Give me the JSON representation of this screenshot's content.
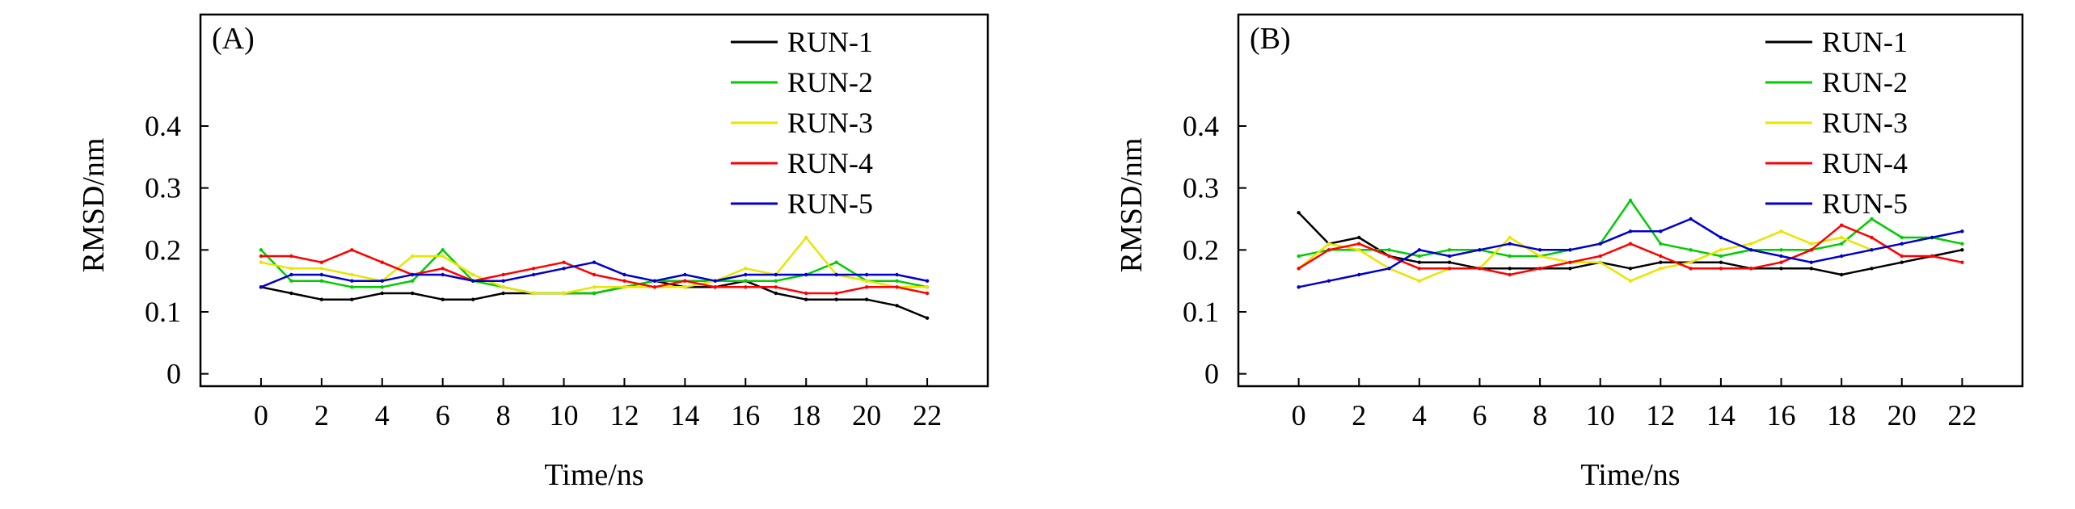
{
  "chart_data": [
    {
      "type": "line",
      "panel_label": "(A)",
      "xlabel": "Time/ns",
      "ylabel": "RMSD/nm",
      "xlim": [
        -2,
        24
      ],
      "ylim": [
        -0.02,
        0.58
      ],
      "xticks": [
        0,
        2,
        4,
        6,
        8,
        10,
        12,
        14,
        16,
        18,
        20,
        22
      ],
      "xtick_labels": [
        "0",
        "2",
        "4",
        "6",
        "8",
        "10",
        "12",
        "14",
        "16",
        "18",
        "20",
        "22"
      ],
      "yticks": [
        0,
        0.1,
        0.2,
        0.3,
        0.4
      ],
      "ytick_labels": [
        "0",
        "0.1",
        "0.2",
        "0.3",
        "0.4"
      ],
      "legend_position": "top-right",
      "grid": false,
      "x": [
        0,
        1,
        2,
        3,
        4,
        5,
        6,
        7,
        8,
        9,
        10,
        11,
        12,
        13,
        14,
        15,
        16,
        17,
        18,
        19,
        20,
        21,
        22
      ],
      "series": [
        {
          "name": "RUN-1",
          "color": "#000000",
          "values": [
            0.14,
            0.13,
            0.12,
            0.12,
            0.13,
            0.13,
            0.12,
            0.12,
            0.13,
            0.13,
            0.13,
            0.13,
            0.14,
            0.15,
            0.14,
            0.14,
            0.15,
            0.13,
            0.12,
            0.12,
            0.12,
            0.11,
            0.09
          ]
        },
        {
          "name": "RUN-2",
          "color": "#00cc00",
          "values": [
            0.2,
            0.15,
            0.15,
            0.14,
            0.14,
            0.15,
            0.2,
            0.15,
            0.14,
            0.13,
            0.13,
            0.13,
            0.14,
            0.15,
            0.15,
            0.15,
            0.15,
            0.15,
            0.16,
            0.18,
            0.15,
            0.15,
            0.14
          ]
        },
        {
          "name": "RUN-3",
          "color": "#e6e600",
          "values": [
            0.18,
            0.17,
            0.17,
            0.16,
            0.15,
            0.19,
            0.19,
            0.16,
            0.14,
            0.13,
            0.13,
            0.14,
            0.14,
            0.14,
            0.14,
            0.15,
            0.17,
            0.16,
            0.22,
            0.16,
            0.15,
            0.14,
            0.14
          ]
        },
        {
          "name": "RUN-4",
          "color": "#ff0000",
          "values": [
            0.19,
            0.19,
            0.18,
            0.2,
            0.18,
            0.16,
            0.17,
            0.15,
            0.16,
            0.17,
            0.18,
            0.16,
            0.15,
            0.14,
            0.15,
            0.14,
            0.14,
            0.14,
            0.13,
            0.13,
            0.14,
            0.14,
            0.13
          ]
        },
        {
          "name": "RUN-5",
          "color": "#0000cc",
          "values": [
            0.14,
            0.16,
            0.16,
            0.15,
            0.15,
            0.16,
            0.16,
            0.15,
            0.15,
            0.16,
            0.17,
            0.18,
            0.16,
            0.15,
            0.16,
            0.15,
            0.16,
            0.16,
            0.16,
            0.16,
            0.16,
            0.16,
            0.15
          ]
        }
      ]
    },
    {
      "type": "line",
      "panel_label": "(B)",
      "xlabel": "Time/ns",
      "ylabel": "RMSD/nm",
      "xlim": [
        -2,
        24
      ],
      "ylim": [
        -0.02,
        0.58
      ],
      "xticks": [
        0,
        2,
        4,
        6,
        8,
        10,
        12,
        14,
        16,
        18,
        20,
        22
      ],
      "xtick_labels": [
        "0",
        "2",
        "4",
        "6",
        "8",
        "10",
        "12",
        "14",
        "16",
        "18",
        "20",
        "22"
      ],
      "yticks": [
        0,
        0.1,
        0.2,
        0.3,
        0.4
      ],
      "ytick_labels": [
        "0",
        "0.1",
        "0.2",
        "0.3",
        "0.4"
      ],
      "legend_position": "top-right",
      "grid": false,
      "x": [
        0,
        1,
        2,
        3,
        4,
        5,
        6,
        7,
        8,
        9,
        10,
        11,
        12,
        13,
        14,
        15,
        16,
        17,
        18,
        19,
        20,
        21,
        22
      ],
      "series": [
        {
          "name": "RUN-1",
          "color": "#000000",
          "values": [
            0.26,
            0.21,
            0.22,
            0.19,
            0.18,
            0.18,
            0.17,
            0.17,
            0.17,
            0.17,
            0.18,
            0.17,
            0.18,
            0.18,
            0.18,
            0.17,
            0.17,
            0.17,
            0.16,
            0.17,
            0.18,
            0.19,
            0.2
          ]
        },
        {
          "name": "RUN-2",
          "color": "#00cc00",
          "values": [
            0.19,
            0.2,
            0.2,
            0.2,
            0.19,
            0.2,
            0.2,
            0.19,
            0.19,
            0.2,
            0.21,
            0.28,
            0.21,
            0.2,
            0.19,
            0.2,
            0.2,
            0.2,
            0.21,
            0.25,
            0.22,
            0.22,
            0.21
          ]
        },
        {
          "name": "RUN-3",
          "color": "#e6e600",
          "values": [
            0.17,
            0.21,
            0.2,
            0.17,
            0.15,
            0.17,
            0.17,
            0.22,
            0.19,
            0.18,
            0.18,
            0.15,
            0.17,
            0.18,
            0.2,
            0.21,
            0.23,
            0.21,
            0.22,
            0.2,
            0.21,
            0.22,
            0.23
          ]
        },
        {
          "name": "RUN-4",
          "color": "#ff0000",
          "values": [
            0.17,
            0.2,
            0.21,
            0.19,
            0.17,
            0.17,
            0.17,
            0.16,
            0.17,
            0.18,
            0.19,
            0.21,
            0.19,
            0.17,
            0.17,
            0.17,
            0.18,
            0.2,
            0.24,
            0.22,
            0.19,
            0.19,
            0.18
          ]
        },
        {
          "name": "RUN-5",
          "color": "#0000cc",
          "values": [
            0.14,
            0.15,
            0.16,
            0.17,
            0.2,
            0.19,
            0.2,
            0.21,
            0.2,
            0.2,
            0.21,
            0.23,
            0.23,
            0.25,
            0.22,
            0.2,
            0.19,
            0.18,
            0.19,
            0.2,
            0.21,
            0.22,
            0.23
          ]
        }
      ]
    }
  ]
}
